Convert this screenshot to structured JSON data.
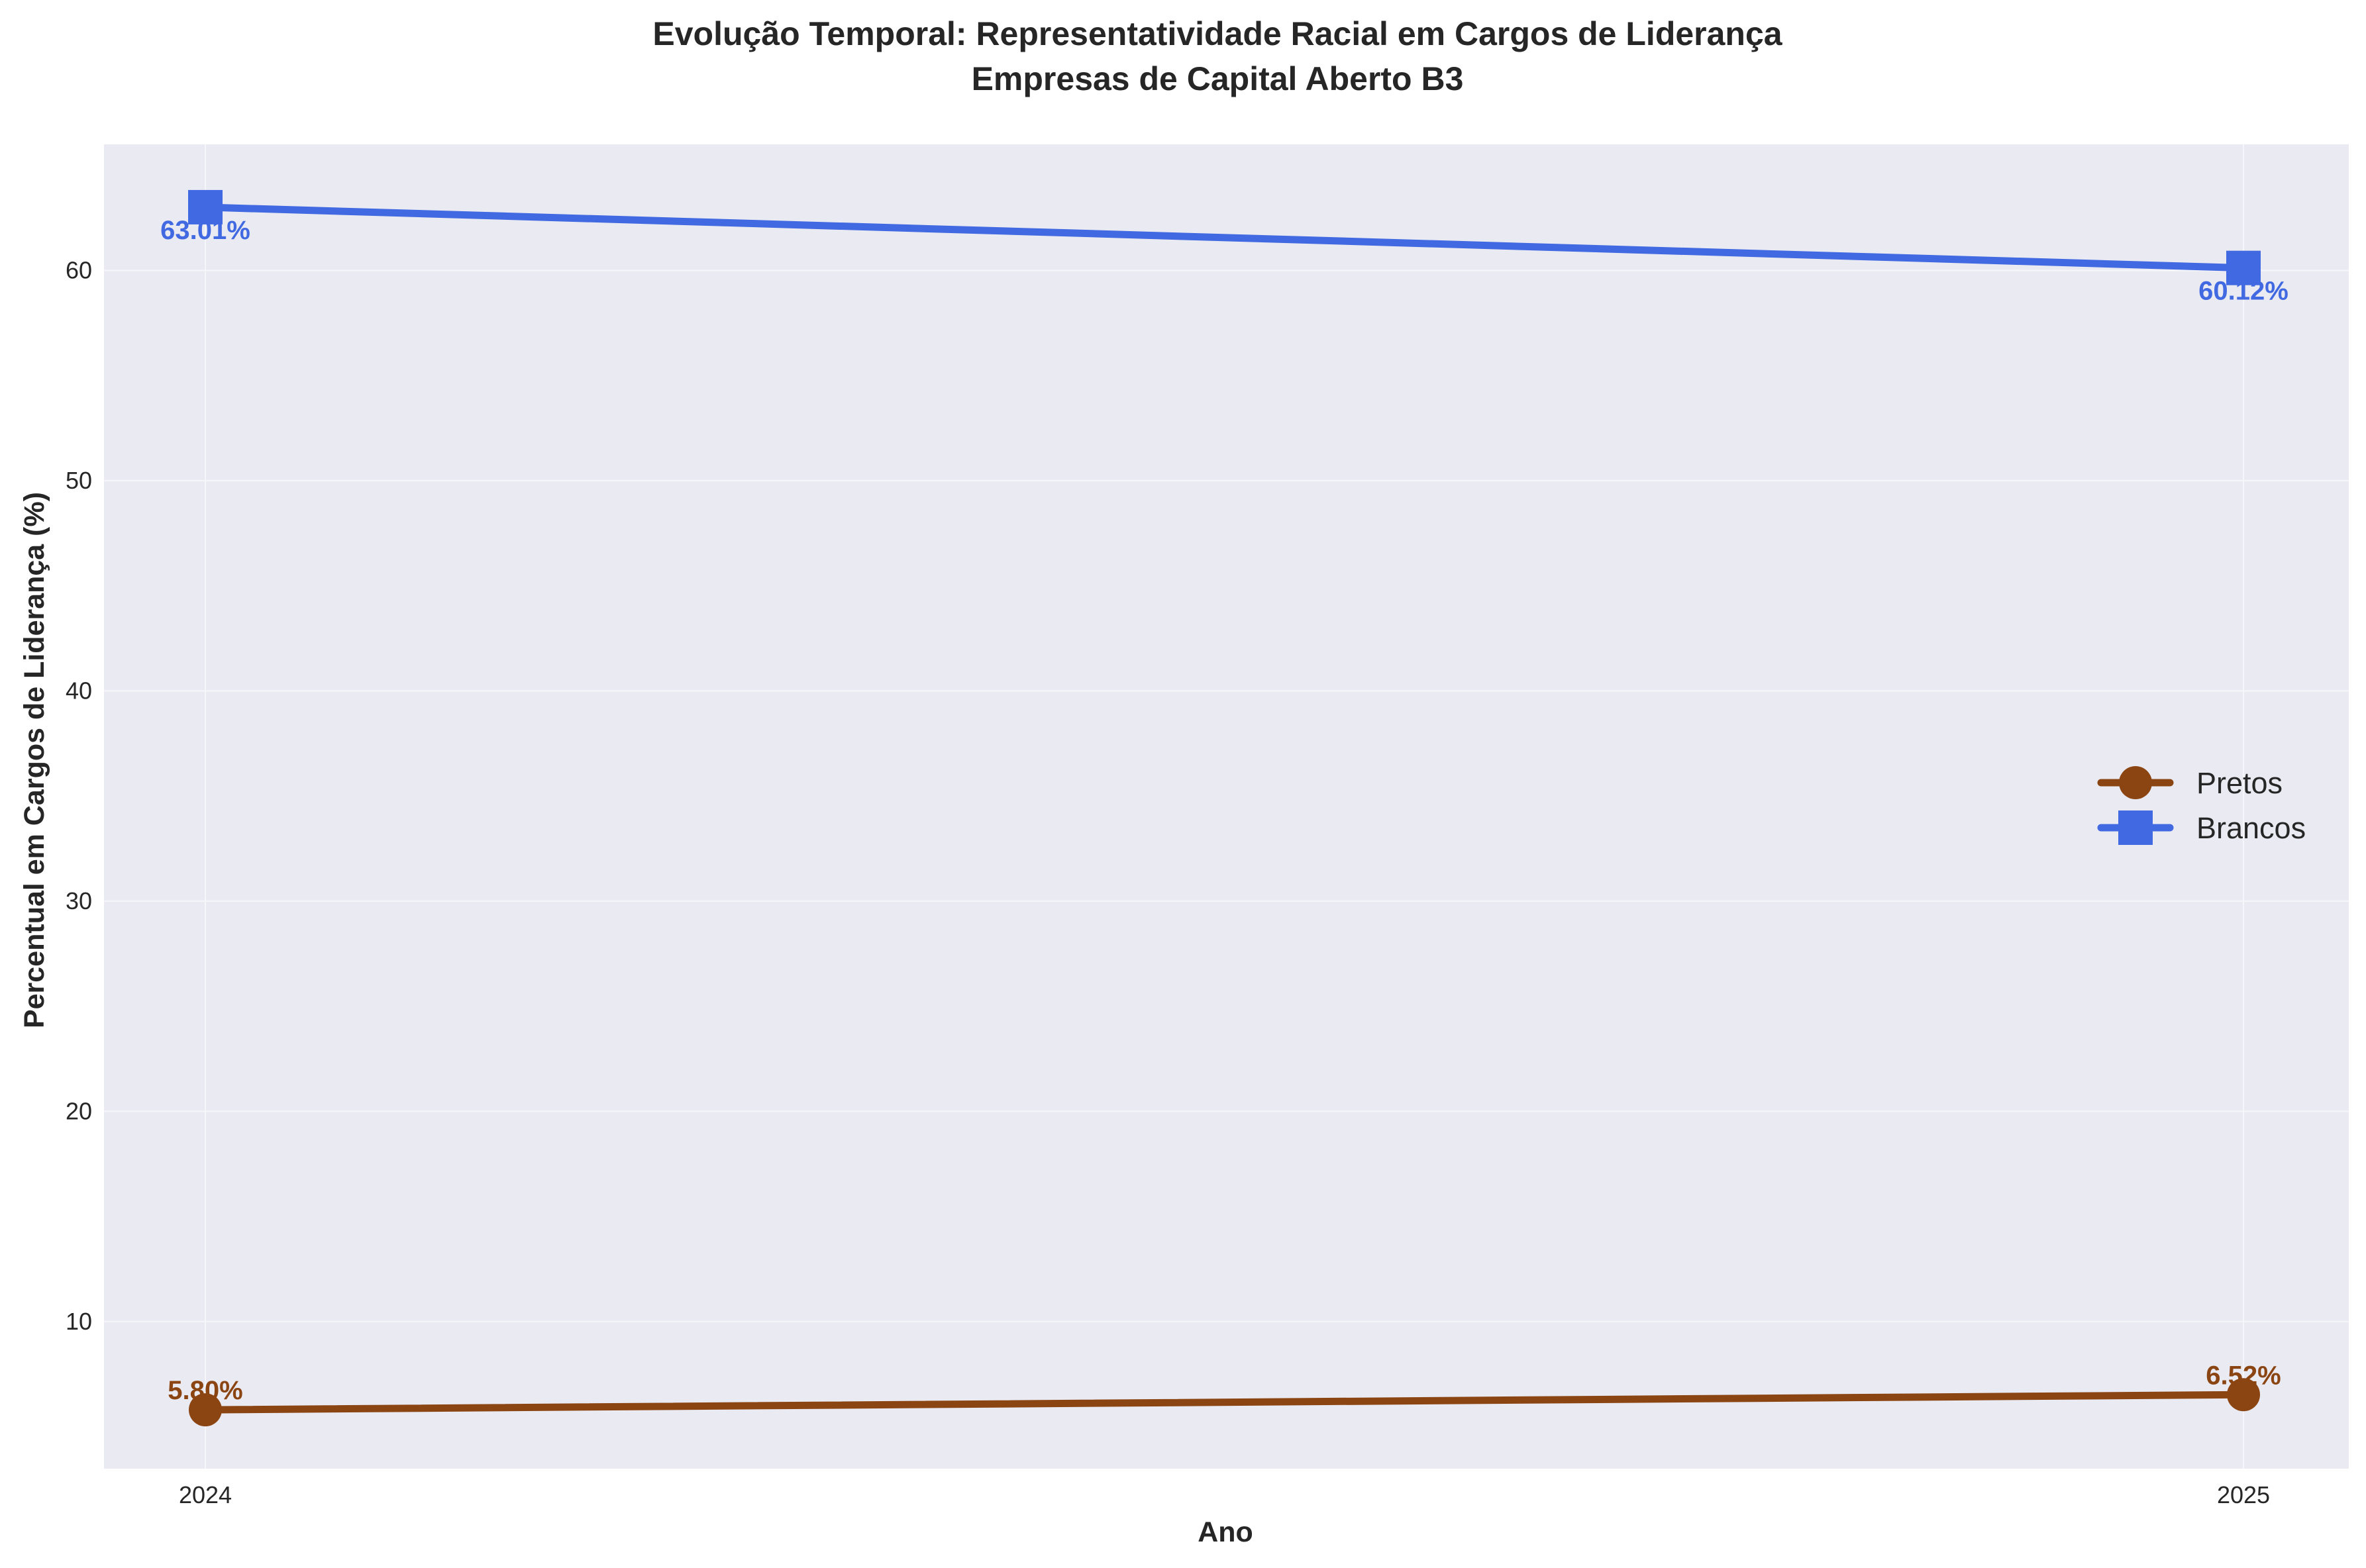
{
  "chart_data": {
    "type": "line",
    "title": "Evolução Temporal: Representatividade Racial em Cargos de Liderança",
    "subtitle": "Empresas de Capital Aberto B3",
    "xlabel": "Ano",
    "ylabel": "Percentual em Cargos de Liderança (%)",
    "x": [
      2024,
      2025
    ],
    "x_tick_labels": [
      "2024",
      "2025"
    ],
    "ylim": [
      3,
      66
    ],
    "y_ticks": [
      10,
      20,
      30,
      40,
      50,
      60
    ],
    "grid": true,
    "legend_position": "center-right",
    "series": [
      {
        "name": "Pretos",
        "values": [
          5.8,
          6.52
        ],
        "labels": [
          "5.80%",
          "6.52%"
        ],
        "color": "#8B4513",
        "marker": "circle",
        "label_position": "above"
      },
      {
        "name": "Brancos",
        "values": [
          63.01,
          60.12
        ],
        "labels": [
          "63.01%",
          "60.12%"
        ],
        "color": "#4169E1",
        "marker": "square",
        "label_position": "below"
      }
    ],
    "colors": {
      "plot_background": "#EAEAF2",
      "grid": "#F5F5FA"
    }
  }
}
